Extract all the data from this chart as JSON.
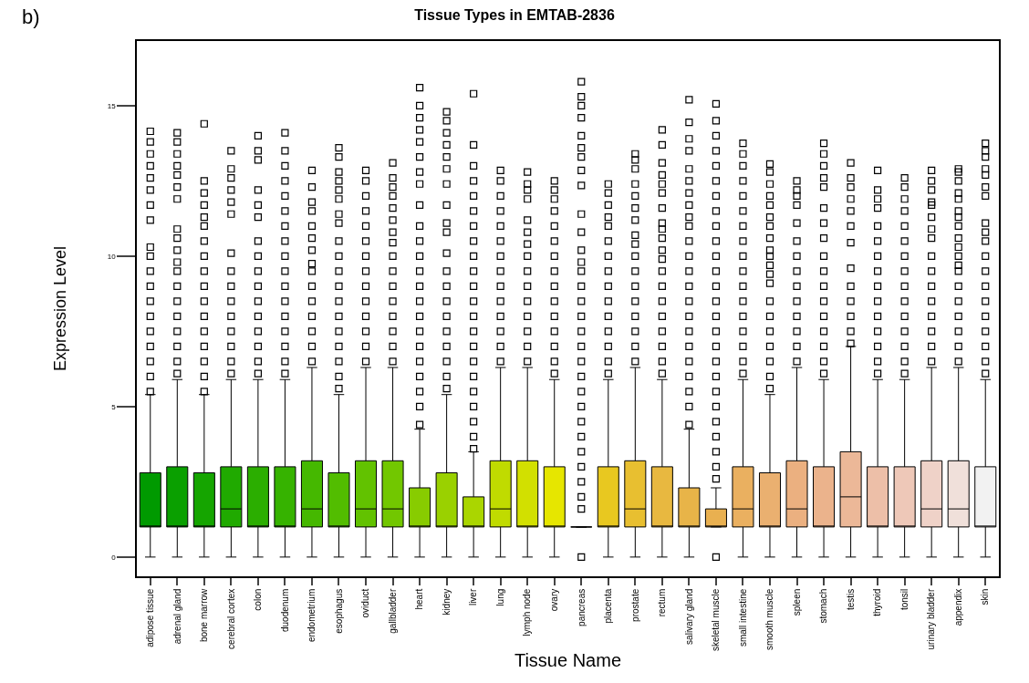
{
  "chart_data": {
    "type": "box",
    "title": "Tissue Types in EMTAB-2836",
    "xlabel": "Tissue Name",
    "ylabel": "Expression Level",
    "annotations": [
      "b)"
    ],
    "categories": [
      "adipose tissue",
      "adrenal gland",
      "bone marrow",
      "cerebral cortex",
      "colon",
      "duodenum",
      "endometrium",
      "esophagus",
      "oviduct",
      "gallbladder",
      "heart",
      "kidney",
      "liver",
      "lung",
      "lymph node",
      "ovary",
      "pancreas",
      "placenta",
      "prostate",
      "rectum",
      "salivary gland",
      "skeletal muscle",
      "small intestine",
      "smooth muscle",
      "spleen",
      "stomach",
      "testis",
      "thyroid",
      "tonsil",
      "urinary bladder",
      "appendix",
      "skin"
    ],
    "colors": [
      "#009a00",
      "#0aa000",
      "#15a500",
      "#20aa00",
      "#2bae00",
      "#36b300",
      "#45b800",
      "#52bd00",
      "#62c200",
      "#72c700",
      "#88cc00",
      "#9ad100",
      "#aad600",
      "#c0db00",
      "#d2e000",
      "#e6e600",
      "#000000",
      "#e8c820",
      "#e8bf30",
      "#e8b840",
      "#e8b448",
      "#e9b050",
      "#eab060",
      "#eab070",
      "#ebb080",
      "#ebb38c",
      "#ecb898",
      "#edbfa8",
      "#eec8b8",
      "#efd2c8",
      "#f0e0da",
      "#f2f2f2"
    ],
    "boxes": [
      {
        "low": 0,
        "q1": 1,
        "median": 1,
        "q3": 2.8,
        "high": 5.4,
        "outliers": [
          5.5,
          6,
          6.5,
          7,
          7.5,
          8,
          8.5,
          9,
          9.5,
          10,
          10.3,
          11.2,
          11.7,
          12.2,
          12.6,
          13,
          13.4,
          13.8,
          14.15
        ]
      },
      {
        "low": 0,
        "q1": 1,
        "median": 1,
        "q3": 3,
        "high": 5.9,
        "outliers": [
          6.1,
          6.5,
          7,
          7.5,
          8,
          8.5,
          9,
          9.5,
          9.8,
          10.2,
          10.6,
          10.9,
          11.9,
          12.3,
          12.7,
          13,
          13.4,
          13.8,
          14.1
        ]
      },
      {
        "low": 0,
        "q1": 1,
        "median": 1,
        "q3": 2.8,
        "high": 5.4,
        "outliers": [
          5.5,
          6,
          6.5,
          7,
          7.5,
          8,
          8.5,
          9,
          9.5,
          10,
          10.5,
          11,
          11.3,
          11.7,
          12.1,
          12.5,
          14.4
        ]
      },
      {
        "low": 0,
        "q1": 1,
        "median": 1.6,
        "q3": 3,
        "high": 5.9,
        "outliers": [
          6.1,
          6.5,
          7,
          7.5,
          8,
          8.5,
          9,
          9.5,
          10.1,
          11.4,
          11.8,
          12.2,
          12.6,
          12.9,
          13.5
        ]
      },
      {
        "low": 0,
        "q1": 1,
        "median": 1,
        "q3": 3,
        "high": 5.9,
        "outliers": [
          6.1,
          6.5,
          7,
          7.5,
          8,
          8.5,
          9,
          9.5,
          10,
          10.5,
          11.3,
          11.7,
          12.2,
          13.2,
          13.5,
          14
        ]
      },
      {
        "low": 0,
        "q1": 1,
        "median": 1,
        "q3": 3,
        "high": 5.9,
        "outliers": [
          6.1,
          6.5,
          7,
          7.5,
          8,
          8.5,
          9,
          9.5,
          10,
          10.5,
          11,
          11.5,
          12,
          12.5,
          13,
          13.5,
          14.1
        ]
      },
      {
        "low": 0,
        "q1": 1,
        "median": 1.6,
        "q3": 3.2,
        "high": 6.3,
        "outliers": [
          6.5,
          7,
          7.5,
          8,
          8.5,
          9,
          9.5,
          9.75,
          10.2,
          10.6,
          11,
          11.5,
          11.8,
          12.3,
          12.85
        ]
      },
      {
        "low": 0,
        "q1": 1,
        "median": 1,
        "q3": 2.8,
        "high": 5.4,
        "outliers": [
          5.6,
          6,
          6.5,
          7,
          7.5,
          8,
          8.5,
          9,
          9.5,
          10,
          10.5,
          11.1,
          11.4,
          11.9,
          12.2,
          12.5,
          12.8,
          13.3,
          13.6
        ]
      },
      {
        "low": 0,
        "q1": 1,
        "median": 1.6,
        "q3": 3.2,
        "high": 6.3,
        "outliers": [
          6.5,
          7,
          7.5,
          8,
          8.5,
          9,
          9.5,
          10,
          10.5,
          11,
          11.5,
          12,
          12.5,
          12.85
        ]
      },
      {
        "low": 0,
        "q1": 1,
        "median": 1.6,
        "q3": 3.2,
        "high": 6.3,
        "outliers": [
          6.5,
          7,
          7.5,
          8,
          8.5,
          9,
          9.5,
          10,
          10.45,
          10.8,
          11.2,
          11.6,
          12,
          12.3,
          12.6,
          13.1
        ]
      },
      {
        "low": 0,
        "q1": 1,
        "median": 1,
        "q3": 2.3,
        "high": 4.25,
        "outliers": [
          4.4,
          5,
          5.5,
          6,
          6.5,
          7,
          7.5,
          8,
          8.5,
          9,
          9.5,
          10,
          10.5,
          11,
          11.7,
          12.4,
          12.8,
          13.3,
          13.8,
          14.2,
          14.6,
          15,
          15.6
        ]
      },
      {
        "low": 0,
        "q1": 1,
        "median": 1,
        "q3": 2.8,
        "high": 5.4,
        "outliers": [
          5.6,
          6,
          6.5,
          7,
          7.5,
          8,
          8.5,
          9,
          9.5,
          10.1,
          10.8,
          11.1,
          11.7,
          12.4,
          12.9,
          13.3,
          13.7,
          14.1,
          14.5,
          14.8
        ]
      },
      {
        "low": 0,
        "q1": 1,
        "median": 1,
        "q3": 2,
        "high": 3.5,
        "outliers": [
          3.6,
          4,
          4.5,
          5,
          5.5,
          6,
          6.5,
          7,
          7.5,
          8,
          8.5,
          9,
          9.5,
          10,
          10.5,
          11,
          11.5,
          12,
          12.5,
          13,
          13.7,
          15.4
        ]
      },
      {
        "low": 0,
        "q1": 1,
        "median": 1.6,
        "q3": 3.2,
        "high": 6.3,
        "outliers": [
          6.5,
          7,
          7.5,
          8,
          8.5,
          9,
          9.5,
          10,
          10.5,
          11,
          11.5,
          12,
          12.5,
          12.85
        ]
      },
      {
        "low": 0,
        "q1": 1,
        "median": 1,
        "q3": 3.2,
        "high": 6.3,
        "outliers": [
          6.5,
          7,
          7.5,
          8,
          8.5,
          9,
          9.5,
          10,
          10.4,
          10.8,
          11.2,
          11.9,
          12.2,
          12.4,
          12.8
        ]
      },
      {
        "low": 0,
        "q1": 1,
        "median": 1,
        "q3": 3,
        "high": 5.9,
        "outliers": [
          6.1,
          6.5,
          7,
          7.5,
          8,
          8.5,
          9,
          9.5,
          10,
          10.5,
          11,
          11.5,
          11.9,
          12.2,
          12.5
        ]
      },
      {
        "low": 1,
        "q1": 1,
        "median": 1,
        "q3": 1,
        "high": 1,
        "outliers": [
          0,
          1.6,
          2,
          2.5,
          3,
          3.5,
          4,
          4.5,
          5,
          5.5,
          6,
          6.5,
          7,
          7.5,
          8,
          8.5,
          9,
          9.5,
          9.8,
          10.2,
          10.8,
          11.4,
          12.35,
          12.85,
          13.3,
          13.6,
          14,
          14.6,
          15,
          15.3,
          15.8
        ]
      },
      {
        "low": 0,
        "q1": 1,
        "median": 1,
        "q3": 3,
        "high": 5.9,
        "outliers": [
          6.1,
          6.5,
          7,
          7.5,
          8,
          8.5,
          9,
          9.5,
          10,
          10.5,
          11,
          11.3,
          11.7,
          12.1,
          12.4
        ]
      },
      {
        "low": 0,
        "q1": 1,
        "median": 1.6,
        "q3": 3.2,
        "high": 6.3,
        "outliers": [
          6.5,
          7,
          7.5,
          8,
          8.5,
          9,
          9.5,
          10,
          10.4,
          10.7,
          11.2,
          11.6,
          12,
          12.4,
          12.9,
          13.2,
          13.4
        ]
      },
      {
        "low": 0,
        "q1": 1,
        "median": 1,
        "q3": 3,
        "high": 5.9,
        "outliers": [
          6.1,
          6.5,
          7,
          7.5,
          8,
          8.5,
          9,
          9.5,
          9.9,
          10.2,
          10.6,
          10.9,
          11.1,
          11.6,
          12.1,
          12.4,
          12.7,
          13.1,
          13.7,
          14.2
        ]
      },
      {
        "low": 0,
        "q1": 1,
        "median": 1,
        "q3": 2.3,
        "high": 4.25,
        "outliers": [
          4.4,
          5,
          5.5,
          6,
          6.5,
          7,
          7.5,
          8,
          8.5,
          9,
          9.5,
          10,
          10.5,
          11,
          11.3,
          11.7,
          12.1,
          12.5,
          12.9,
          13.5,
          13.9,
          14.45,
          15.2
        ]
      },
      {
        "low": 1,
        "q1": 1,
        "median": 1,
        "q3": 1.6,
        "high": 2.3,
        "outliers": [
          0,
          2.6,
          3,
          3.5,
          4,
          4.5,
          5,
          5.5,
          6,
          6.5,
          7,
          7.5,
          8,
          8.5,
          9,
          9.5,
          10,
          10.5,
          11,
          11.5,
          12,
          12.5,
          13,
          13.5,
          14,
          14.5,
          15.06
        ]
      },
      {
        "low": 0,
        "q1": 1,
        "median": 1.6,
        "q3": 3,
        "high": 5.9,
        "outliers": [
          6.1,
          6.5,
          7,
          7.5,
          8,
          8.5,
          9,
          9.5,
          10,
          10.5,
          11,
          11.5,
          12,
          12.5,
          13,
          13.4,
          13.75
        ]
      },
      {
        "low": 0,
        "q1": 1,
        "median": 1,
        "q3": 2.8,
        "high": 5.4,
        "outliers": [
          5.6,
          6,
          6.5,
          7,
          7.5,
          8,
          8.5,
          9.1,
          9.4,
          9.7,
          10,
          10.2,
          10.6,
          11,
          11.3,
          11.7,
          12,
          12.4,
          12.8,
          13.06
        ]
      },
      {
        "low": 0,
        "q1": 1,
        "median": 1.6,
        "q3": 3.2,
        "high": 6.3,
        "outliers": [
          6.5,
          7,
          7.5,
          8,
          8.5,
          9,
          9.5,
          10,
          10.5,
          11.1,
          11.7,
          12,
          12.2,
          12.5
        ]
      },
      {
        "low": 0,
        "q1": 1,
        "median": 1,
        "q3": 3,
        "high": 5.9,
        "outliers": [
          6.1,
          6.5,
          7,
          7.5,
          8,
          8.5,
          9,
          9.5,
          10,
          10.6,
          11.1,
          11.6,
          12.3,
          12.6,
          13,
          13.4,
          13.75
        ]
      },
      {
        "low": 0,
        "q1": 1,
        "median": 2,
        "q3": 3.5,
        "high": 7,
        "outliers": [
          7.1,
          7.5,
          8,
          8.5,
          9,
          9.6,
          10.45,
          11,
          11.5,
          11.9,
          12.3,
          12.6,
          13.1
        ]
      },
      {
        "low": 0,
        "q1": 1,
        "median": 1,
        "q3": 3,
        "high": 5.9,
        "outliers": [
          6.1,
          6.5,
          7,
          7.5,
          8,
          8.5,
          9,
          9.5,
          10,
          10.5,
          11,
          11.6,
          11.9,
          12.2,
          12.85
        ]
      },
      {
        "low": 0,
        "q1": 1,
        "median": 1,
        "q3": 3,
        "high": 5.9,
        "outliers": [
          6.1,
          6.5,
          7,
          7.5,
          8,
          8.5,
          9,
          9.5,
          10,
          10.5,
          11,
          11.5,
          11.9,
          12.3,
          12.6
        ]
      },
      {
        "low": 0,
        "q1": 1,
        "median": 1.6,
        "q3": 3.2,
        "high": 6.3,
        "outliers": [
          6.5,
          7,
          7.5,
          8,
          8.5,
          9,
          9.5,
          10,
          10.6,
          10.9,
          11.3,
          11.7,
          11.8,
          12.2,
          12.5,
          12.85
        ]
      },
      {
        "low": 0,
        "q1": 1,
        "median": 1.6,
        "q3": 3.2,
        "high": 6.3,
        "outliers": [
          6.5,
          7,
          7.5,
          8,
          8.5,
          9,
          9.5,
          9.7,
          10,
          10.3,
          10.6,
          11,
          11.3,
          11.5,
          11.9,
          12.1,
          12.5,
          12.8,
          12.9
        ]
      },
      {
        "low": 0,
        "q1": 1,
        "median": 1,
        "q3": 3,
        "high": 5.9,
        "outliers": [
          6.1,
          6.5,
          7,
          7.5,
          8,
          8.5,
          9,
          9.5,
          10,
          10.5,
          10.8,
          11.1,
          12,
          12.3,
          12.7,
          12.9,
          13.3,
          13.5,
          13.75
        ]
      }
    ],
    "ylim": [
      -0.64,
      17.15
    ],
    "yticks": [
      0,
      5,
      10,
      15
    ],
    "grid": false,
    "marker": "square"
  }
}
